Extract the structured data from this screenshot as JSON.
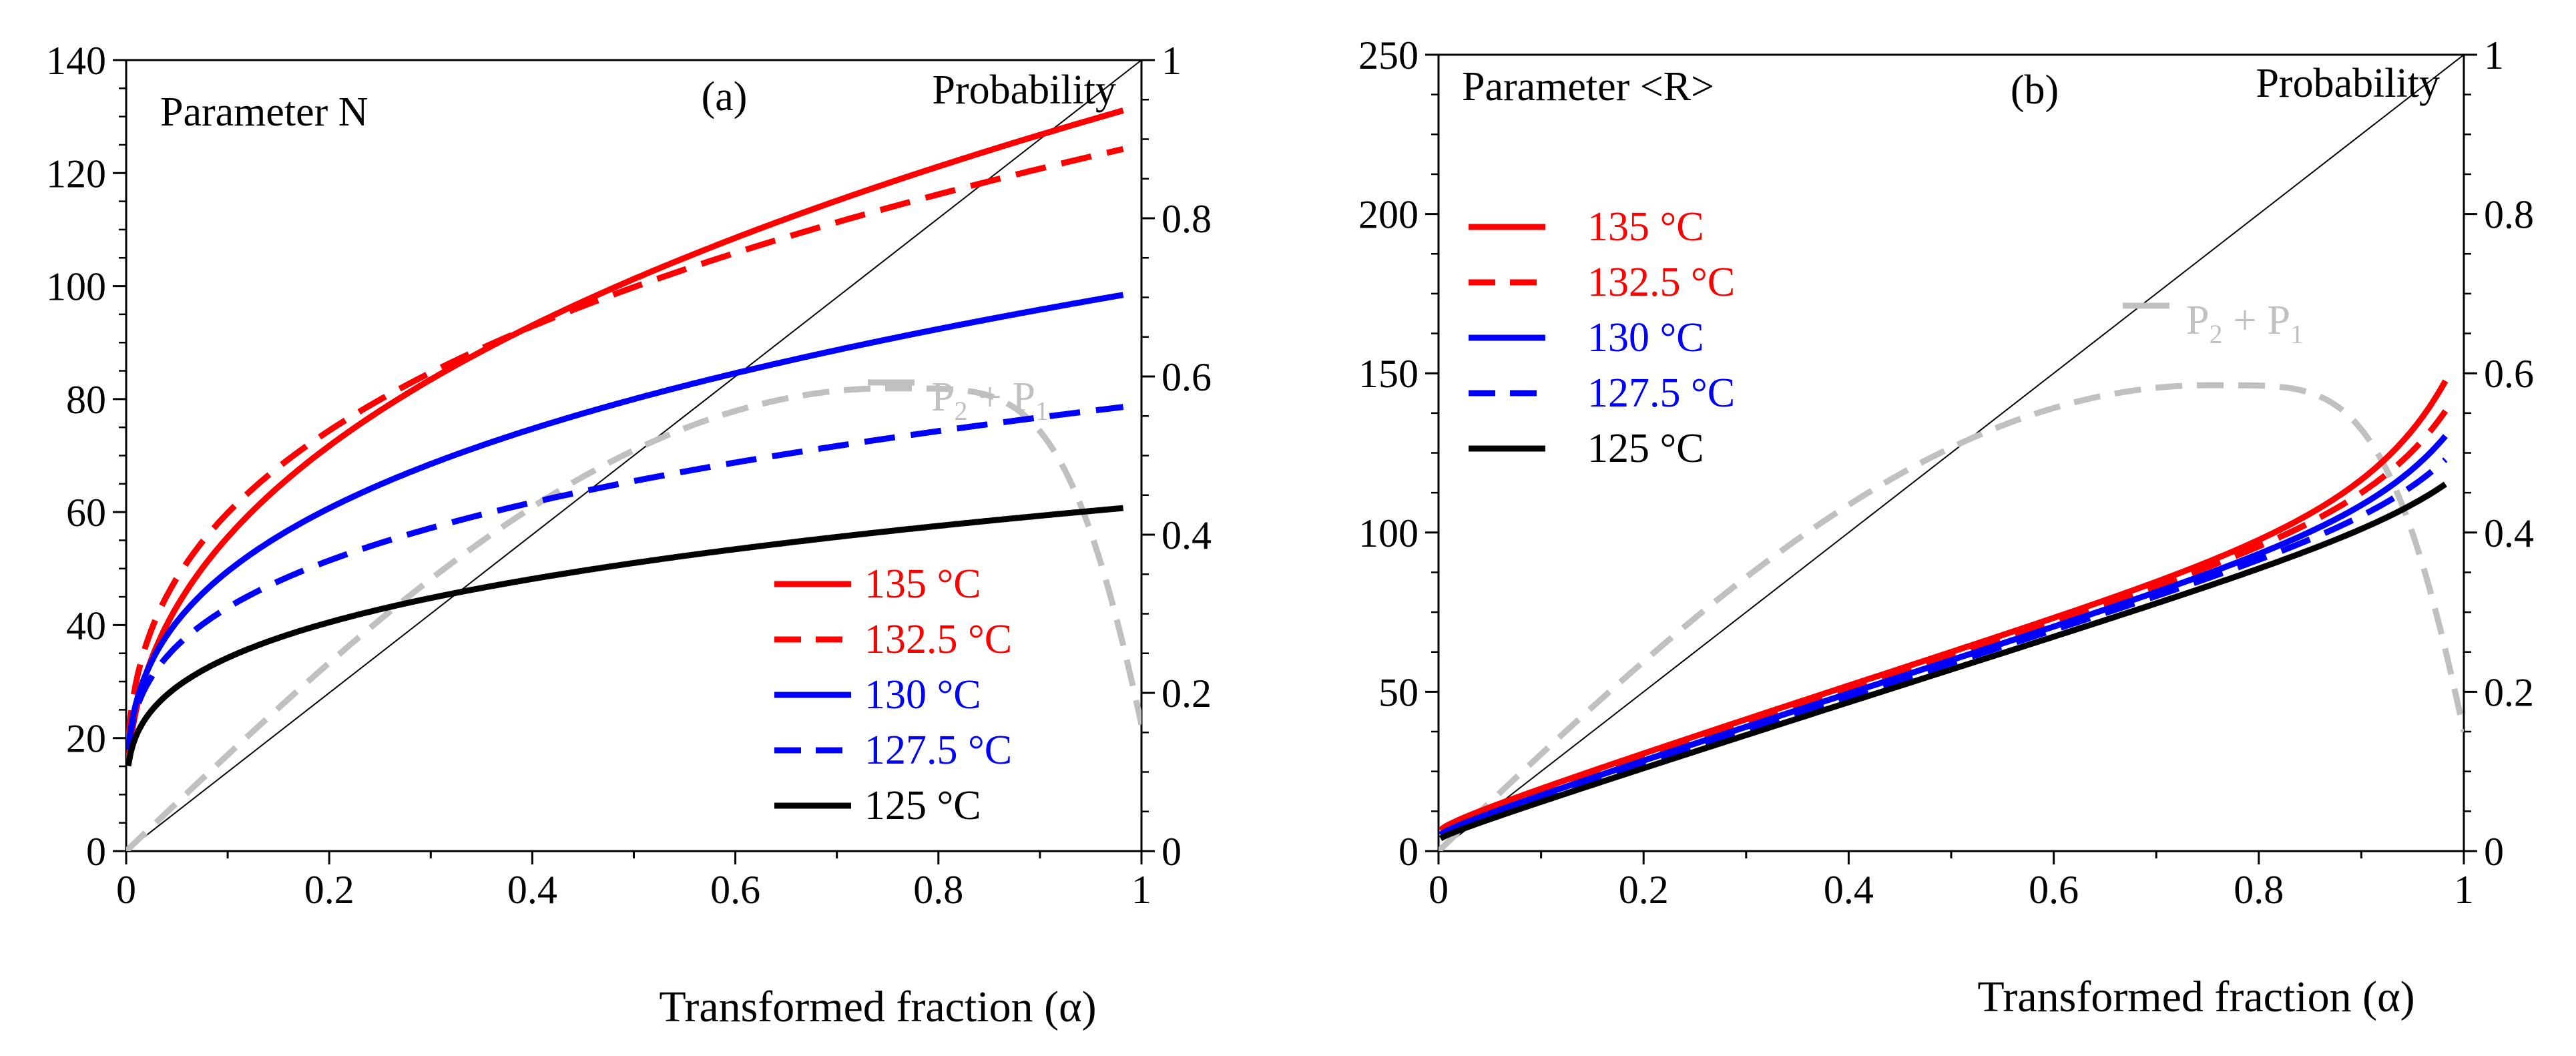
{
  "chart_data": [
    {
      "type": "line",
      "id": "a",
      "panel_tag": "(a)",
      "parameter_label": "Parameter N",
      "right_axis_label": "Probability",
      "xlabel": "Transformed fraction (α)",
      "xlim": [
        0,
        1
      ],
      "ylim_left": [
        0,
        140
      ],
      "ylim_right": [
        0,
        1
      ],
      "x_ticks": [
        "0",
        "0.2",
        "0.4",
        "0.6",
        "0.8",
        "1"
      ],
      "y_ticks_left": [
        "0",
        "20",
        "40",
        "60",
        "80",
        "100",
        "120",
        "140"
      ],
      "y_ticks_right": [
        "0",
        "0.2",
        "0.4",
        "0.6",
        "0.8",
        "1"
      ],
      "legend_position": "lower-right",
      "series": [
        {
          "name": "135 °C",
          "color": "#ff0000",
          "dash": "solid",
          "model": "pow",
          "a": 127,
          "p": 0.4,
          "b": 5
        },
        {
          "name": "132.5 °C",
          "color": "#ff0000",
          "dash": "dashed",
          "model": "pow",
          "a": 120,
          "p": 0.34,
          "b": 5
        },
        {
          "name": "130 °C",
          "color": "#0000ff",
          "dash": "solid",
          "model": "pow",
          "a": 93,
          "p": 0.33,
          "b": 6
        },
        {
          "name": "127.5 °C",
          "color": "#0000ff",
          "dash": "dashed",
          "model": "pow",
          "a": 72,
          "p": 0.3,
          "b": 7
        },
        {
          "name": "125 °C",
          "color": "#000000",
          "dash": "solid",
          "model": "pow",
          "a": 55,
          "p": 0.29,
          "b": 6
        }
      ],
      "probability_curve": {
        "name": "P2 + P1",
        "base": "P",
        "sub1": "2",
        "plus": "+",
        "sub2": "1",
        "color": "#c0c0c0",
        "axis": "right",
        "peak_x": 0.75,
        "peak_y": 0.585,
        "end_y": 0.16
      },
      "reference_line": {
        "from": [
          0,
          0
        ],
        "to": [
          1,
          1
        ],
        "axis": "right",
        "color": "#000000"
      }
    },
    {
      "type": "line",
      "id": "b",
      "panel_tag": "(b)",
      "parameter_label": "Parameter <R>",
      "right_axis_label": "Probability",
      "xlabel": "Transformed fraction (α)",
      "xlim": [
        0,
        1
      ],
      "ylim_left": [
        0,
        250
      ],
      "ylim_right": [
        0,
        1
      ],
      "x_ticks": [
        "0",
        "0.2",
        "0.4",
        "0.6",
        "0.8",
        "1"
      ],
      "y_ticks_left": [
        "0",
        "50",
        "100",
        "150",
        "200",
        "250"
      ],
      "y_ticks_right": [
        "0",
        "0.2",
        "0.4",
        "0.6",
        "0.8",
        "1"
      ],
      "legend_position": "upper-left",
      "series": [
        {
          "name": "135 °C",
          "color": "#ff0000",
          "dash": "solid",
          "model": "grow",
          "b": 5,
          "a": 9.14,
          "p": 0.3,
          "k": 17,
          "q": 1.3
        },
        {
          "name": "132.5 °C",
          "color": "#ff0000",
          "dash": "dashed",
          "model": "grow",
          "b": 5,
          "a": 8.0,
          "p": 0.3,
          "k": 13,
          "q": 1.3
        },
        {
          "name": "130 °C",
          "color": "#0000ff",
          "dash": "solid",
          "model": "grow",
          "b": 4,
          "a": 7.36,
          "p": 0.32,
          "k": 10,
          "q": 1.3
        },
        {
          "name": "127.5 °C",
          "color": "#0000ff",
          "dash": "dashed",
          "model": "grow",
          "b": 4,
          "a": 6.19,
          "p": 0.32,
          "k": 7,
          "q": 1.3
        },
        {
          "name": "125 °C",
          "color": "#000000",
          "dash": "solid",
          "model": "grow",
          "b": 3,
          "a": 4.89,
          "p": 0.3,
          "k": 5,
          "q": 1.2
        }
      ],
      "probability_curve": {
        "name": "P2 + P1",
        "base": "P",
        "sub1": "2",
        "plus": "+",
        "sub2": "1",
        "color": "#c0c0c0",
        "axis": "right",
        "peak_x": 0.75,
        "peak_y": 0.585,
        "end_y": 0.15
      },
      "reference_line": {
        "from": [
          0,
          0
        ],
        "to": [
          1,
          1
        ],
        "axis": "right",
        "color": "#000000"
      }
    }
  ]
}
